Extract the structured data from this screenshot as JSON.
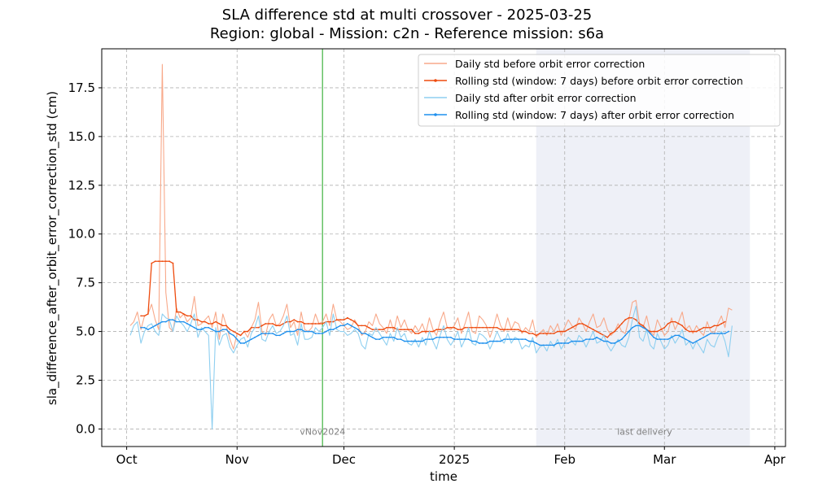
{
  "chart_data": {
    "type": "line",
    "title": "SLA difference std at multi crossover - 2025-03-25",
    "subtitle": "Region: global - Mission: c2n - Reference mission: s6a",
    "xlabel": "time",
    "ylabel": "sla_difference_after_orbit_error_correction_std (cm)",
    "xlim": [
      "2024-09-24",
      "2025-04-04"
    ],
    "ylim": [
      -0.9,
      19.5
    ],
    "x_ticks": [
      {
        "date": "2024-10-01",
        "label": "Oct"
      },
      {
        "date": "2024-11-01",
        "label": "Nov"
      },
      {
        "date": "2024-12-01",
        "label": "Dec"
      },
      {
        "date": "2025-01-01",
        "label": "2025"
      },
      {
        "date": "2025-02-01",
        "label": "Feb"
      },
      {
        "date": "2025-03-01",
        "label": "Mar"
      },
      {
        "date": "2025-04-01",
        "label": "Apr"
      }
    ],
    "y_ticks": [
      0.0,
      2.5,
      5.0,
      7.5,
      10.0,
      12.5,
      15.0,
      17.5
    ],
    "y_tick_labels": [
      "0.0",
      "2.5",
      "5.0",
      "7.5",
      "10.0",
      "12.5",
      "15.0",
      "17.5"
    ],
    "grid": true,
    "legend_position": "top-right",
    "annotations": {
      "vertical_line": {
        "date": "2024-11-25",
        "label": "vNov2024",
        "color": "#66c266"
      },
      "shaded_region": {
        "start": "2025-01-24",
        "end": "2025-03-25",
        "label": "last delivery",
        "color": "#eef0f7"
      }
    },
    "series": [
      {
        "name": "Daily std before orbit error correction",
        "color": "#f8a98a",
        "marker": false,
        "x_start": "2024-10-02",
        "x_step_days": 1,
        "values": [
          5.3,
          5.5,
          6.0,
          5.1,
          5.8,
          5.9,
          6.4,
          5.6,
          5.1,
          18.7,
          7.0,
          5.2,
          5.0,
          6.2,
          5.7,
          5.9,
          5.5,
          5.7,
          6.8,
          5.3,
          5.4,
          5.6,
          5.8,
          5.2,
          6.0,
          4.6,
          5.9,
          5.3,
          4.6,
          4.1,
          4.9,
          4.8,
          5.0,
          4.7,
          5.2,
          5.6,
          6.5,
          5.0,
          4.8,
          5.6,
          5.9,
          5.3,
          5.4,
          5.8,
          6.4,
          5.2,
          5.5,
          4.8,
          6.0,
          5.1,
          5.0,
          5.2,
          5.9,
          5.4,
          5.5,
          5.9,
          5.3,
          6.4,
          5.6,
          5.5,
          5.3,
          5.1,
          5.2,
          5.6,
          5.3,
          4.8,
          5.0,
          5.5,
          5.3,
          5.9,
          5.4,
          5.2,
          4.9,
          5.6,
          5.0,
          5.8,
          5.2,
          5.6,
          5.1,
          4.9,
          5.3,
          5.0,
          5.4,
          4.9,
          5.7,
          5.1,
          4.8,
          5.5,
          6.0,
          5.2,
          5.1,
          5.3,
          5.7,
          4.9,
          5.4,
          6.0,
          5.0,
          4.9,
          5.8,
          5.6,
          5.3,
          4.7,
          5.2,
          5.9,
          5.3,
          5.0,
          5.7,
          5.1,
          5.5,
          5.4,
          4.9,
          5.2,
          5.0,
          5.6,
          4.7,
          4.9,
          5.1,
          4.8,
          5.3,
          5.0,
          5.4,
          4.8,
          5.2,
          5.6,
          5.3,
          5.1,
          5.7,
          5.4,
          5.0,
          5.5,
          5.9,
          5.2,
          5.3,
          5.7,
          5.1,
          4.8,
          5.0,
          5.4,
          5.0,
          4.9,
          5.6,
          6.5,
          6.6,
          5.4,
          5.2,
          5.8,
          5.0,
          4.8,
          5.6,
          5.2,
          4.8,
          5.0,
          5.7,
          5.1,
          5.5,
          6.0,
          5.1,
          5.3,
          4.9,
          5.3,
          5.0,
          4.8,
          5.5,
          5.0,
          4.9,
          5.4,
          5.8,
          5.2,
          6.2,
          6.1
        ]
      },
      {
        "name": "Rolling std (window: 7 days) before orbit error correction",
        "color": "#ee4b0e",
        "marker": true,
        "x_start": "2024-10-05",
        "x_step_days": 1,
        "values": [
          5.8,
          5.8,
          5.9,
          8.5,
          8.6,
          8.6,
          8.6,
          8.6,
          8.6,
          8.5,
          6.0,
          6.0,
          5.9,
          5.8,
          5.8,
          5.6,
          5.6,
          5.5,
          5.5,
          5.4,
          5.4,
          5.5,
          5.4,
          5.3,
          5.3,
          5.1,
          5.0,
          4.9,
          4.8,
          5.0,
          5.0,
          5.2,
          5.2,
          5.2,
          5.3,
          5.4,
          5.4,
          5.4,
          5.3,
          5.3,
          5.4,
          5.5,
          5.5,
          5.6,
          5.5,
          5.5,
          5.4,
          5.4,
          5.4,
          5.4,
          5.4,
          5.4,
          5.5,
          5.5,
          5.5,
          5.6,
          5.6,
          5.6,
          5.7,
          5.6,
          5.5,
          5.3,
          5.3,
          5.3,
          5.2,
          5.1,
          5.1,
          5.1,
          5.1,
          5.2,
          5.2,
          5.2,
          5.1,
          5.1,
          5.1,
          5.1,
          5.1,
          4.9,
          4.9,
          5.0,
          5.0,
          5.0,
          5.0,
          5.1,
          5.1,
          5.1,
          5.2,
          5.2,
          5.2,
          5.1,
          5.1,
          5.2,
          5.2,
          5.2,
          5.2,
          5.2,
          5.2,
          5.2,
          5.2,
          5.2,
          5.2,
          5.1,
          5.1,
          5.1,
          5.1,
          5.1,
          5.1,
          5.0,
          5.0,
          4.9,
          4.9,
          4.8,
          4.9,
          4.9,
          4.9,
          4.9,
          4.9,
          5.0,
          5.0,
          5.0,
          5.1,
          5.2,
          5.3,
          5.4,
          5.4,
          5.3,
          5.2,
          5.1,
          5.0,
          4.9,
          4.8,
          4.7,
          4.9,
          5.0,
          5.2,
          5.4,
          5.6,
          5.7,
          5.7,
          5.6,
          5.4,
          5.3,
          5.1,
          5.0,
          5.0,
          5.0,
          5.1,
          5.2,
          5.4,
          5.5,
          5.5,
          5.4,
          5.3,
          5.1,
          5.0,
          5.0,
          5.0,
          5.1,
          5.2,
          5.2,
          5.2,
          5.3,
          5.3,
          5.4,
          5.5
        ]
      },
      {
        "name": "Daily std after orbit error correction",
        "color": "#8ecff0",
        "marker": false,
        "x_start": "2024-10-02",
        "x_step_days": 1,
        "values": [
          4.8,
          5.3,
          5.5,
          4.4,
          5.0,
          5.3,
          5.4,
          5.0,
          4.8,
          5.9,
          5.7,
          5.6,
          5.0,
          5.8,
          5.5,
          5.3,
          5.0,
          5.4,
          5.9,
          4.7,
          5.2,
          5.0,
          4.8,
          0.0,
          5.2,
          4.3,
          4.8,
          4.9,
          4.2,
          3.9,
          4.3,
          4.6,
          4.7,
          4.2,
          4.9,
          5.2,
          5.8,
          4.6,
          4.5,
          5.0,
          5.3,
          4.9,
          5.0,
          5.3,
          5.8,
          4.8,
          4.9,
          4.3,
          5.4,
          4.6,
          4.6,
          4.7,
          5.2,
          5.0,
          5.2,
          5.5,
          4.8,
          5.9,
          5.1,
          5.0,
          5.0,
          4.8,
          4.9,
          5.1,
          4.9,
          4.3,
          4.1,
          4.9,
          4.8,
          5.2,
          4.9,
          4.6,
          4.3,
          4.9,
          4.5,
          5.2,
          4.7,
          4.9,
          4.4,
          4.3,
          4.6,
          4.2,
          4.7,
          4.3,
          5.0,
          4.5,
          4.1,
          4.8,
          5.3,
          4.6,
          4.3,
          4.6,
          5.0,
          4.2,
          4.6,
          5.2,
          4.4,
          4.3,
          4.9,
          4.8,
          4.6,
          4.1,
          4.5,
          5.0,
          4.6,
          4.4,
          4.9,
          4.4,
          4.7,
          4.6,
          4.1,
          4.3,
          4.2,
          4.7,
          3.9,
          4.2,
          4.3,
          4.0,
          4.5,
          4.2,
          4.6,
          4.1,
          4.4,
          4.7,
          4.5,
          4.3,
          4.8,
          4.6,
          4.2,
          4.6,
          5.0,
          4.4,
          4.5,
          4.8,
          4.3,
          4.0,
          4.3,
          4.6,
          4.3,
          4.2,
          4.7,
          5.6,
          6.3,
          4.7,
          4.5,
          5.1,
          4.3,
          4.1,
          4.9,
          4.5,
          4.1,
          4.3,
          4.8,
          4.4,
          4.7,
          5.1,
          4.3,
          4.5,
          4.1,
          4.5,
          4.2,
          3.9,
          4.6,
          4.3,
          4.2,
          4.7,
          5.0,
          4.5,
          3.7,
          5.3
        ]
      },
      {
        "name": "Rolling std (window: 7 days) after orbit error correction",
        "color": "#1e90ee",
        "marker": true,
        "x_start": "2024-10-05",
        "x_step_days": 1,
        "values": [
          5.2,
          5.2,
          5.1,
          5.2,
          5.3,
          5.4,
          5.5,
          5.5,
          5.6,
          5.6,
          5.5,
          5.5,
          5.5,
          5.4,
          5.3,
          5.2,
          5.1,
          5.1,
          5.2,
          5.2,
          5.1,
          5.0,
          5.0,
          5.1,
          5.1,
          4.9,
          4.8,
          4.6,
          4.4,
          4.4,
          4.5,
          4.6,
          4.7,
          4.8,
          4.9,
          4.9,
          4.9,
          4.9,
          4.8,
          4.8,
          4.9,
          5.0,
          5.0,
          5.0,
          5.1,
          5.1,
          5.0,
          5.0,
          5.0,
          4.9,
          4.9,
          4.9,
          5.0,
          5.1,
          5.1,
          5.2,
          5.3,
          5.3,
          5.4,
          5.3,
          5.2,
          5.1,
          4.9,
          4.9,
          4.8,
          4.7,
          4.6,
          4.6,
          4.7,
          4.7,
          4.7,
          4.7,
          4.6,
          4.6,
          4.5,
          4.5,
          4.5,
          4.5,
          4.5,
          4.5,
          4.6,
          4.6,
          4.6,
          4.7,
          4.7,
          4.7,
          4.7,
          4.7,
          4.6,
          4.6,
          4.6,
          4.6,
          4.6,
          4.5,
          4.5,
          4.4,
          4.4,
          4.4,
          4.5,
          4.5,
          4.5,
          4.5,
          4.6,
          4.6,
          4.6,
          4.6,
          4.6,
          4.6,
          4.6,
          4.5,
          4.5,
          4.4,
          4.3,
          4.3,
          4.3,
          4.3,
          4.3,
          4.4,
          4.4,
          4.4,
          4.4,
          4.5,
          4.5,
          4.5,
          4.5,
          4.6,
          4.6,
          4.6,
          4.7,
          4.6,
          4.5,
          4.5,
          4.4,
          4.4,
          4.5,
          4.6,
          4.8,
          5.0,
          5.2,
          5.3,
          5.3,
          5.2,
          5.1,
          4.9,
          4.7,
          4.6,
          4.6,
          4.6,
          4.6,
          4.7,
          4.8,
          4.8,
          4.7,
          4.6,
          4.5,
          4.4,
          4.5,
          4.6,
          4.7,
          4.8,
          4.9,
          4.9,
          4.9,
          4.9,
          4.9,
          5.0
        ]
      }
    ]
  }
}
